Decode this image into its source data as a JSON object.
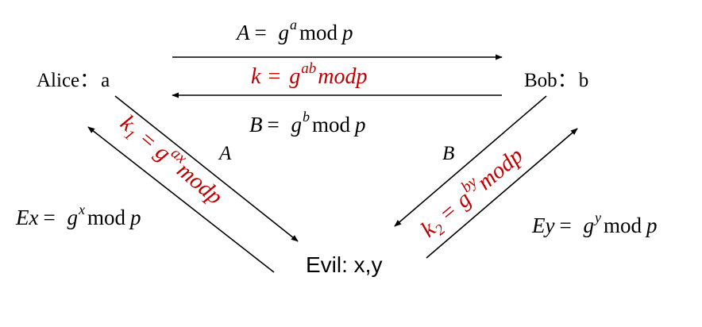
{
  "colors": {
    "text": "#000000",
    "highlight": "#c00000",
    "line": "#000000",
    "background": "#ffffff"
  },
  "parties": {
    "alice": {
      "name": "Alice",
      "sep": "：",
      "secret": "a"
    },
    "bob": {
      "name": "Bob",
      "sep": "：",
      "secret": "b"
    },
    "evil": {
      "label": "Evil: x,y"
    }
  },
  "formulas": {
    "alice_to_bob": {
      "lhs": "A",
      "eq": "= ",
      "base": "g",
      "exp": "a",
      "mod": "mod",
      "mod_var": "p"
    },
    "shared_key": {
      "lhs": "k",
      "eq": " = ",
      "base": "g",
      "exp": "ab",
      "tail": "modp"
    },
    "bob_to_alice": {
      "lhs": "B",
      "eq": "= ",
      "base": "g",
      "exp": "b",
      "mod": "mod",
      "mod_var": "p"
    },
    "key_one": {
      "lhs": "k",
      "sub": "1",
      "eq": " = ",
      "base": "g",
      "exp": "ax",
      "tail": "modp"
    },
    "key_two": {
      "lhs": "k",
      "sub": "2",
      "eq": " = ",
      "base": "g",
      "exp": "by",
      "tail": "modp"
    },
    "evil_to_alice": {
      "lhs": "Ex",
      "eq": "= ",
      "base": "g",
      "exp": "x",
      "mod": "mod",
      "mod_var": "p"
    },
    "evil_to_bob": {
      "lhs": "Ey",
      "eq": "= ",
      "base": "g",
      "exp": "y",
      "mod": "mod",
      "mod_var": "p"
    }
  },
  "arrow_labels": {
    "alice_evil": "A",
    "bob_evil": "B"
  }
}
